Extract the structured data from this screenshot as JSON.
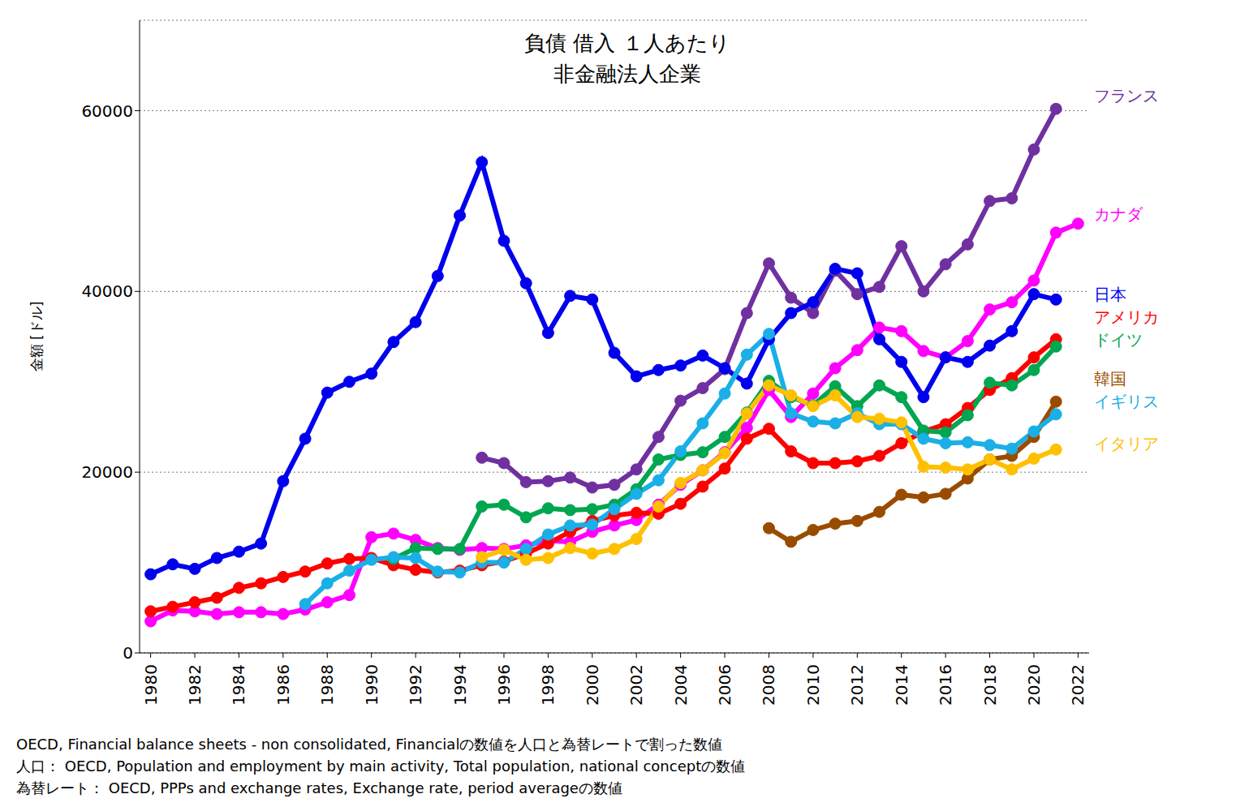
{
  "chart_data": {
    "type": "line",
    "title": "負債 借入 １人あたり",
    "subtitle": "非金融法人企業",
    "y_label": "金額 [ドル]",
    "footnotes": [
      "OECD, Financial balance sheets - non consolidated, Financialの数値を人口と為替レートで割った数値",
      "人口： OECD, Population and employment by main activity, Total population, national conceptの数値",
      "為替レート： OECD, PPPs and exchange rates, Exchange rate, period averageの数値"
    ],
    "x": [
      1980,
      1981,
      1982,
      1983,
      1984,
      1985,
      1986,
      1987,
      1988,
      1989,
      1990,
      1991,
      1992,
      1993,
      1994,
      1995,
      1996,
      1997,
      1998,
      1999,
      2000,
      2001,
      2002,
      2003,
      2004,
      2005,
      2006,
      2007,
      2008,
      2009,
      2010,
      2011,
      2012,
      2013,
      2014,
      2015,
      2016,
      2017,
      2018,
      2019,
      2020,
      2021,
      2022
    ],
    "xlim": [
      1979.5,
      2022.5
    ],
    "xticks": [
      1980,
      1982,
      1984,
      1986,
      1988,
      1990,
      1992,
      1994,
      1996,
      1998,
      2000,
      2002,
      2004,
      2006,
      2008,
      2010,
      2012,
      2014,
      2016,
      2018,
      2020,
      2022
    ],
    "ylim": [
      0,
      70000
    ],
    "yticks": [
      0,
      20000,
      40000,
      60000
    ],
    "grid": true,
    "marker": "circle",
    "series": [
      {
        "name": "フランス",
        "color": "#7030a0",
        "values": [
          null,
          null,
          null,
          null,
          null,
          null,
          null,
          null,
          null,
          null,
          null,
          null,
          null,
          null,
          null,
          21600,
          21000,
          18900,
          19000,
          19400,
          18300,
          18600,
          20300,
          23900,
          27900,
          29300,
          31400,
          37600,
          43100,
          39300,
          37600,
          42300,
          39700,
          40500,
          45000,
          40000,
          43000,
          45200,
          50000,
          50300,
          55700,
          60200,
          null
        ]
      },
      {
        "name": "カナダ",
        "color": "#ff00ff",
        "values": [
          3500,
          4700,
          4600,
          4300,
          4500,
          4500,
          4300,
          4800,
          5600,
          6400,
          12800,
          13200,
          12500,
          11600,
          11400,
          11600,
          11500,
          11900,
          12400,
          12300,
          13400,
          14100,
          14700,
          16400,
          18600,
          20200,
          22200,
          24900,
          29100,
          26100,
          28700,
          31500,
          33500,
          36000,
          35600,
          33400,
          32700,
          34500,
          38000,
          38800,
          41200,
          46500,
          47500
        ]
      },
      {
        "name": "日本",
        "color": "#0000ee",
        "values": [
          8700,
          9800,
          9300,
          10500,
          11200,
          12100,
          19000,
          23700,
          28800,
          30000,
          30900,
          34400,
          36600,
          41700,
          48400,
          54300,
          45600,
          40900,
          35400,
          39500,
          39100,
          33200,
          30600,
          31300,
          31800,
          32900,
          31500,
          29800,
          34700,
          37600,
          38800,
          42500,
          42000,
          34700,
          32200,
          28300,
          32700,
          32200,
          34000,
          35600,
          39700,
          39100,
          null
        ]
      },
      {
        "name": "アメリカ",
        "color": "#ff0000",
        "values": [
          4600,
          5100,
          5600,
          6100,
          7200,
          7700,
          8400,
          9000,
          9900,
          10400,
          10500,
          9700,
          9200,
          8900,
          9100,
          9700,
          10100,
          11000,
          12100,
          13400,
          14600,
          15200,
          15500,
          15400,
          16500,
          18400,
          20400,
          23700,
          24800,
          22300,
          21000,
          21000,
          21200,
          21800,
          23200,
          24500,
          25300,
          27100,
          29100,
          30400,
          32700,
          34700,
          null
        ]
      },
      {
        "name": "ドイツ",
        "color": "#00a650",
        "values": [
          null,
          null,
          null,
          null,
          null,
          null,
          null,
          null,
          null,
          null,
          null,
          10400,
          11600,
          11500,
          11500,
          16200,
          16400,
          15000,
          16000,
          15800,
          15900,
          16400,
          18100,
          21400,
          21900,
          22200,
          23900,
          26600,
          30100,
          28300,
          27400,
          29500,
          27300,
          29600,
          28300,
          24600,
          24400,
          26300,
          29900,
          29600,
          31300,
          33900,
          null
        ]
      },
      {
        "name": "韓国",
        "color": "#994c00",
        "values": [
          null,
          null,
          null,
          null,
          null,
          null,
          null,
          null,
          null,
          null,
          null,
          null,
          null,
          null,
          null,
          null,
          null,
          null,
          null,
          null,
          null,
          null,
          null,
          null,
          null,
          null,
          null,
          null,
          13800,
          12300,
          13600,
          14300,
          14600,
          15600,
          17500,
          17200,
          17600,
          19300,
          21400,
          21800,
          23900,
          27800,
          null
        ]
      },
      {
        "name": "イギリス",
        "color": "#1aafe6",
        "values": [
          null,
          null,
          null,
          null,
          null,
          null,
          null,
          5400,
          7700,
          9100,
          10300,
          10600,
          10500,
          9000,
          8900,
          10000,
          10000,
          11500,
          13100,
          14100,
          14200,
          15900,
          17600,
          19100,
          22300,
          25400,
          28700,
          33000,
          35300,
          26500,
          25600,
          25400,
          26500,
          25300,
          25300,
          23700,
          23200,
          23300,
          23000,
          22600,
          24500,
          26400,
          null
        ]
      },
      {
        "name": "イタリア",
        "color": "#ffc000",
        "values": [
          null,
          null,
          null,
          null,
          null,
          null,
          null,
          null,
          null,
          null,
          null,
          null,
          null,
          null,
          null,
          10600,
          11400,
          10300,
          10500,
          11600,
          11000,
          11500,
          12600,
          16200,
          18800,
          20200,
          22100,
          26500,
          29600,
          28500,
          27300,
          28500,
          26100,
          25900,
          25500,
          20600,
          20500,
          20300,
          21400,
          20300,
          21500,
          22500,
          null
        ]
      }
    ]
  }
}
